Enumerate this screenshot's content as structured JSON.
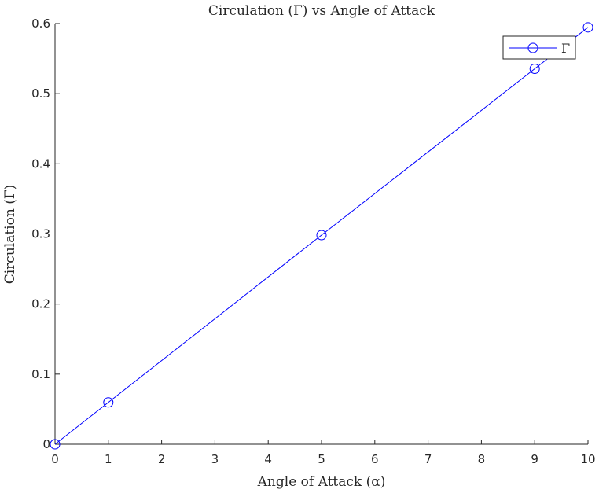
{
  "chart_data": {
    "type": "line",
    "title": "Circulation (Γ) vs Angle of Attack",
    "xlabel": "Angle of Attack (α)",
    "ylabel": "Circulation (Γ)",
    "xlim": [
      0,
      10
    ],
    "ylim": [
      0,
      0.6
    ],
    "xticks": [
      0,
      1,
      2,
      3,
      4,
      5,
      6,
      7,
      8,
      9,
      10
    ],
    "yticks": [
      0,
      0.1,
      0.2,
      0.3,
      0.4,
      0.5,
      0.6
    ],
    "xtick_labels": [
      "0",
      "1",
      "2",
      "3",
      "4",
      "5",
      "6",
      "7",
      "8",
      "9",
      "10"
    ],
    "ytick_labels": [
      "0",
      "0.1",
      "0.2",
      "0.3",
      "0.4",
      "0.5",
      "0.6"
    ],
    "grid": false,
    "legend_position": "top-right",
    "series": [
      {
        "name": "Γ",
        "color": "#0000ff",
        "marker": "circle",
        "x": [
          0,
          1,
          5,
          9,
          10
        ],
        "y": [
          0,
          0.0597,
          0.2983,
          0.5355,
          0.5946
        ]
      }
    ]
  }
}
